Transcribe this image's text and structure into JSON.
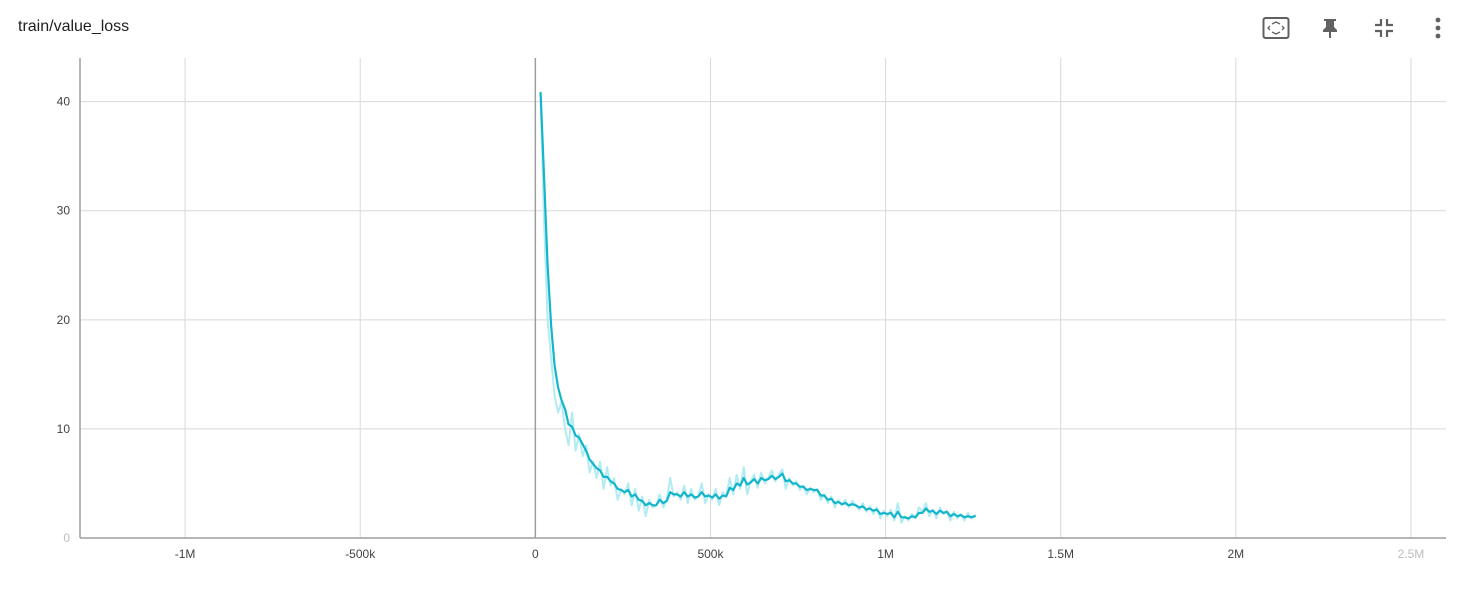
{
  "header": {
    "title": "train/value_loss"
  },
  "toolbar": {
    "items": [
      {
        "icon": "fit-domain-icon"
      },
      {
        "icon": "pin-icon"
      },
      {
        "icon": "collapse-icon"
      },
      {
        "icon": "more-vert-icon"
      }
    ]
  },
  "colors": {
    "smoothed": "#12b5cb",
    "raw": "#b2ebf2",
    "grid": "#d8d8d8",
    "axis": "#9e9e9e"
  },
  "chart_data": {
    "type": "line",
    "title": "train/value_loss",
    "xlabel": "",
    "ylabel": "",
    "xlim": [
      -1300000,
      2600000
    ],
    "ylim": [
      0,
      44
    ],
    "xticks": [
      -1000000,
      -500000,
      0,
      500000,
      1000000,
      1500000,
      2000000,
      2500000
    ],
    "xtick_labels": [
      "-1M",
      "-500k",
      "0",
      "500k",
      "1M",
      "1.5M",
      "2M",
      "2.5M"
    ],
    "yticks": [
      0,
      10,
      20,
      30,
      40
    ],
    "ytick_labels": [
      "0",
      "10",
      "20",
      "30",
      "40"
    ],
    "grid": true,
    "series": [
      {
        "role": "raw",
        "x": [
          15000,
          25000,
          35000,
          45000,
          55000,
          65000,
          75000,
          85000,
          95000,
          105000,
          115000,
          125000,
          135000,
          145000,
          155000,
          165000,
          175000,
          185000,
          195000,
          205000,
          215000,
          225000,
          235000,
          245000,
          255000,
          265000,
          275000,
          285000,
          295000,
          305000,
          315000,
          325000,
          335000,
          345000,
          355000,
          365000,
          375000,
          385000,
          395000,
          405000,
          415000,
          425000,
          435000,
          445000,
          455000,
          465000,
          475000,
          485000,
          495000,
          505000,
          515000,
          525000,
          535000,
          545000,
          555000,
          565000,
          575000,
          585000,
          595000,
          605000,
          615000,
          625000,
          635000,
          645000,
          655000,
          665000,
          675000,
          685000,
          695000,
          705000,
          715000,
          725000,
          735000,
          745000,
          755000,
          765000,
          775000,
          785000,
          795000,
          805000,
          815000,
          825000,
          835000,
          845000,
          855000,
          865000,
          875000,
          885000,
          895000,
          905000,
          915000,
          925000,
          935000,
          945000,
          955000,
          965000,
          975000,
          985000,
          995000,
          1005000,
          1015000,
          1025000,
          1035000,
          1045000,
          1055000,
          1065000,
          1075000,
          1085000,
          1095000,
          1105000,
          1115000,
          1125000,
          1135000,
          1145000,
          1155000,
          1165000,
          1175000,
          1185000,
          1195000,
          1205000,
          1215000,
          1225000,
          1235000,
          1245000,
          1255000
        ],
        "y": [
          40.5,
          29.0,
          20.0,
          16.5,
          13.0,
          11.5,
          12.5,
          10.0,
          8.5,
          11.5,
          8.0,
          9.5,
          7.5,
          8.5,
          6.0,
          7.0,
          5.5,
          7.0,
          4.5,
          6.5,
          4.8,
          5.5,
          3.5,
          4.5,
          4.0,
          5.0,
          3.0,
          4.5,
          2.5,
          3.8,
          2.0,
          3.5,
          2.8,
          3.0,
          4.0,
          2.8,
          3.5,
          5.5,
          3.8,
          4.2,
          3.5,
          4.8,
          3.2,
          4.5,
          3.5,
          3.8,
          5.0,
          3.2,
          4.0,
          3.5,
          4.5,
          3.0,
          4.2,
          3.8,
          5.5,
          4.0,
          5.8,
          4.5,
          6.5,
          4.0,
          5.2,
          5.8,
          4.6,
          6.0,
          5.0,
          5.5,
          6.2,
          5.2,
          5.8,
          6.3,
          4.5,
          5.5,
          4.8,
          5.2,
          4.4,
          4.8,
          4.0,
          4.6,
          4.2,
          4.5,
          3.5,
          4.0,
          3.2,
          3.8,
          2.8,
          3.5,
          3.0,
          3.5,
          2.8,
          3.4,
          3.0,
          2.6,
          3.2,
          2.4,
          2.9,
          2.2,
          2.8,
          1.8,
          2.5,
          2.0,
          2.6,
          1.6,
          3.2,
          1.4,
          2.0,
          1.6,
          2.2,
          1.8,
          2.8,
          2.4,
          3.2,
          2.0,
          2.6,
          1.8,
          2.8,
          2.2,
          2.5,
          1.6,
          2.4,
          1.8,
          2.2,
          1.6,
          2.3,
          1.8,
          2.1
        ]
      },
      {
        "role": "smoothed",
        "x": [
          15000,
          25000,
          35000,
          45000,
          55000,
          65000,
          75000,
          85000,
          95000,
          105000,
          115000,
          125000,
          135000,
          145000,
          155000,
          165000,
          175000,
          185000,
          195000,
          205000,
          215000,
          225000,
          235000,
          245000,
          255000,
          265000,
          275000,
          285000,
          295000,
          305000,
          315000,
          325000,
          335000,
          345000,
          355000,
          365000,
          375000,
          385000,
          395000,
          405000,
          415000,
          425000,
          435000,
          445000,
          455000,
          465000,
          475000,
          485000,
          495000,
          505000,
          515000,
          525000,
          535000,
          545000,
          555000,
          565000,
          575000,
          585000,
          595000,
          605000,
          615000,
          625000,
          635000,
          645000,
          655000,
          665000,
          675000,
          685000,
          695000,
          705000,
          715000,
          725000,
          735000,
          745000,
          755000,
          765000,
          775000,
          785000,
          795000,
          805000,
          815000,
          825000,
          835000,
          845000,
          855000,
          865000,
          875000,
          885000,
          895000,
          905000,
          915000,
          925000,
          935000,
          945000,
          955000,
          965000,
          975000,
          985000,
          995000,
          1005000,
          1015000,
          1025000,
          1035000,
          1045000,
          1055000,
          1065000,
          1075000,
          1085000,
          1095000,
          1105000,
          1115000,
          1125000,
          1135000,
          1145000,
          1155000,
          1165000,
          1175000,
          1185000,
          1195000,
          1205000,
          1215000,
          1225000,
          1235000,
          1245000,
          1255000
        ],
        "y": [
          40.8,
          33.0,
          25.0,
          19.5,
          15.8,
          13.8,
          12.6,
          11.8,
          10.4,
          10.2,
          9.4,
          9.2,
          8.6,
          8.0,
          7.2,
          6.8,
          6.4,
          6.2,
          5.6,
          5.6,
          5.2,
          5.0,
          4.5,
          4.4,
          4.2,
          4.4,
          3.8,
          4.0,
          3.5,
          3.4,
          3.0,
          3.2,
          3.0,
          3.0,
          3.5,
          3.2,
          3.4,
          4.2,
          4.0,
          4.0,
          3.8,
          4.2,
          3.8,
          4.0,
          3.7,
          3.8,
          4.2,
          3.8,
          3.9,
          3.7,
          4.0,
          3.6,
          3.9,
          3.8,
          4.6,
          4.4,
          5.0,
          4.8,
          5.5,
          4.9,
          5.1,
          5.4,
          5.0,
          5.5,
          5.3,
          5.4,
          5.7,
          5.4,
          5.6,
          5.9,
          5.2,
          5.3,
          5.0,
          5.0,
          4.7,
          4.7,
          4.4,
          4.5,
          4.4,
          4.4,
          3.9,
          3.9,
          3.5,
          3.6,
          3.2,
          3.3,
          3.1,
          3.2,
          3.0,
          3.1,
          3.0,
          2.8,
          2.9,
          2.6,
          2.7,
          2.5,
          2.6,
          2.2,
          2.3,
          2.2,
          2.3,
          1.9,
          2.4,
          1.9,
          1.9,
          1.8,
          2.0,
          1.9,
          2.3,
          2.3,
          2.7,
          2.4,
          2.5,
          2.2,
          2.5,
          2.3,
          2.4,
          2.0,
          2.2,
          2.0,
          2.1,
          1.9,
          2.0,
          1.9,
          2.0
        ]
      }
    ]
  }
}
